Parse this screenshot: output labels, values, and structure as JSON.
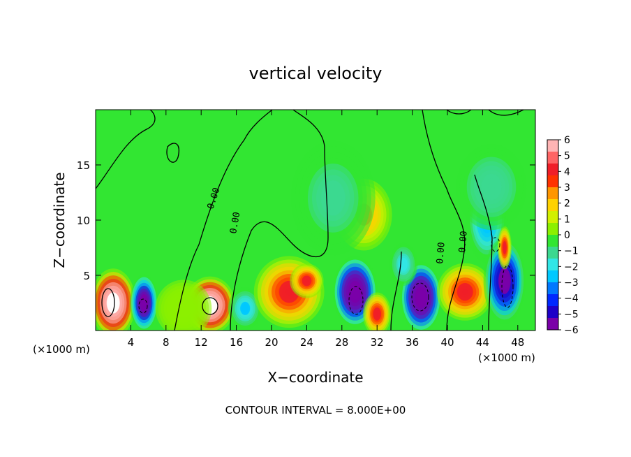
{
  "chart_data": {
    "type": "heatmap",
    "title": "vertical velocity",
    "xlabel": "X−coordinate",
    "ylabel": "Z−coordinate",
    "x_unit_label": "(×1000 m)",
    "z_unit_label": "(×1000 m)",
    "xlim": [
      0,
      50
    ],
    "ylim": [
      0,
      20
    ],
    "x_ticks": [
      4,
      8,
      12,
      16,
      20,
      24,
      28,
      32,
      36,
      40,
      44,
      48
    ],
    "y_ticks": [
      5,
      10,
      15
    ],
    "colorbar": {
      "ticks": [
        "6",
        "5",
        "4",
        "3",
        "2",
        "1",
        "0",
        "−1",
        "−2",
        "−3",
        "−4",
        "−5",
        "−6"
      ],
      "range": [
        -6,
        6
      ],
      "colors": [
        "#7a00a8",
        "#1e00c8",
        "#0028ff",
        "#0078ff",
        "#00c8ff",
        "#32e6e6",
        "#3cd890",
        "#32e632",
        "#8cf000",
        "#d2f000",
        "#ffd200",
        "#ff9600",
        "#ff3200",
        "#f01e28",
        "#ff6464",
        "#ffb4b4"
      ]
    },
    "contour_labels": [
      "0.00",
      "0.00",
      "0.00",
      "0.00"
    ],
    "footer": "CONTOUR INTERVAL = 8.000E+00",
    "cells": [
      {
        "x": 2,
        "z": 2.5,
        "sx": 1.6,
        "sz": 2.4,
        "w": 8
      },
      {
        "x": 5.5,
        "z": 2.5,
        "sx": 1.0,
        "sz": 2.0,
        "w": -7
      },
      {
        "x": 13,
        "z": 2.3,
        "sx": 1.8,
        "sz": 2.0,
        "w": 8
      },
      {
        "x": 17,
        "z": 2.0,
        "sx": 1.2,
        "sz": 1.5,
        "w": -2.5
      },
      {
        "x": 22,
        "z": 3.5,
        "sx": 2.5,
        "sz": 2.5,
        "w": 4
      },
      {
        "x": 24,
        "z": 4.5,
        "sx": 1.2,
        "sz": 1.2,
        "w": 4
      },
      {
        "x": 29.5,
        "z": 3.5,
        "sx": 1.6,
        "sz": 2.5,
        "w": -8
      },
      {
        "x": 32,
        "z": 1.5,
        "sx": 1.0,
        "sz": 1.5,
        "w": 4
      },
      {
        "x": 30.5,
        "z": 10.5,
        "sx": 2.0,
        "sz": 2.5,
        "w": 2.5
      },
      {
        "x": 37,
        "z": 3.0,
        "sx": 1.5,
        "sz": 2.5,
        "w": -8
      },
      {
        "x": 42,
        "z": 3.5,
        "sx": 2.0,
        "sz": 2.0,
        "w": 4
      },
      {
        "x": 44.5,
        "z": 10,
        "sx": 1.5,
        "sz": 3.0,
        "w": -3
      },
      {
        "x": 46.5,
        "z": 4.5,
        "sx": 1.5,
        "sz": 3.0,
        "w": -6
      },
      {
        "x": 46.5,
        "z": 7.5,
        "sx": 0.5,
        "sz": 1.5,
        "w": 4
      },
      {
        "x": 27,
        "z": 12,
        "sx": 3.0,
        "sz": 4.0,
        "w": -1.2
      },
      {
        "x": 45,
        "z": 13,
        "sx": 2.5,
        "sz": 3.0,
        "w": -1.5
      },
      {
        "x": 10,
        "z": 2,
        "sx": 2.0,
        "sz": 2.0,
        "w": 0.5
      },
      {
        "x": 35,
        "z": 6,
        "sx": 1.0,
        "sz": 1.5,
        "w": -2
      }
    ]
  }
}
